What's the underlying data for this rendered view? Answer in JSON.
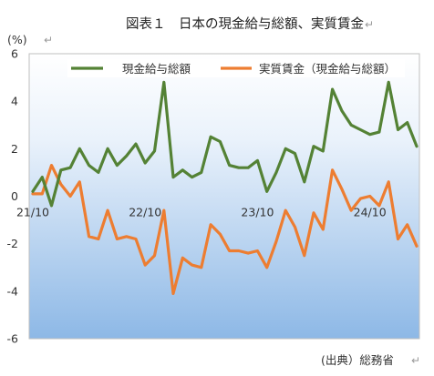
{
  "chart_data": {
    "type": "line",
    "title": "図表１　日本の現金給与総額、実質賃金",
    "unit_label": "(%)",
    "source": "(出典）総務省",
    "ylim": [
      -6,
      6
    ],
    "yticks": [
      -6,
      -4,
      -2,
      0,
      2,
      4,
      6
    ],
    "x_tick_labels": [
      {
        "label": "21/10",
        "index": 0
      },
      {
        "label": "22/10",
        "index": 12
      },
      {
        "label": "23/10",
        "index": 24
      },
      {
        "label": "24/10",
        "index": 36
      }
    ],
    "grid": false,
    "legend_position": "top",
    "series": [
      {
        "name": "現金給与総額",
        "color": "#548235",
        "values": [
          0.2,
          0.8,
          -0.4,
          1.1,
          1.2,
          2.0,
          1.3,
          1.0,
          2.0,
          1.3,
          1.7,
          2.2,
          1.4,
          1.9,
          4.8,
          0.8,
          1.1,
          0.8,
          1.0,
          2.5,
          2.3,
          1.3,
          1.2,
          1.2,
          1.5,
          0.2,
          1.0,
          2.0,
          1.8,
          0.6,
          2.1,
          1.9,
          4.5,
          3.6,
          3.0,
          2.8,
          2.6,
          2.7,
          4.8,
          2.8,
          3.1,
          2.1
        ]
      },
      {
        "name": "実質賃金（現金給与総額）",
        "color": "#ED7D31",
        "values": [
          0.1,
          0.1,
          1.3,
          0.5,
          0.0,
          0.6,
          -1.7,
          -1.8,
          -0.6,
          -1.8,
          -1.7,
          -1.8,
          -2.9,
          -2.5,
          -0.6,
          -4.1,
          -2.6,
          -2.9,
          -3.0,
          -1.2,
          -1.6,
          -2.3,
          -2.3,
          -2.4,
          -2.3,
          -3.0,
          -1.9,
          -0.6,
          -1.3,
          -2.5,
          -0.7,
          -1.4,
          1.1,
          0.3,
          -0.6,
          -0.1,
          0.0,
          -0.4,
          0.6,
          -1.8,
          -1.2,
          -2.1
        ]
      }
    ]
  }
}
